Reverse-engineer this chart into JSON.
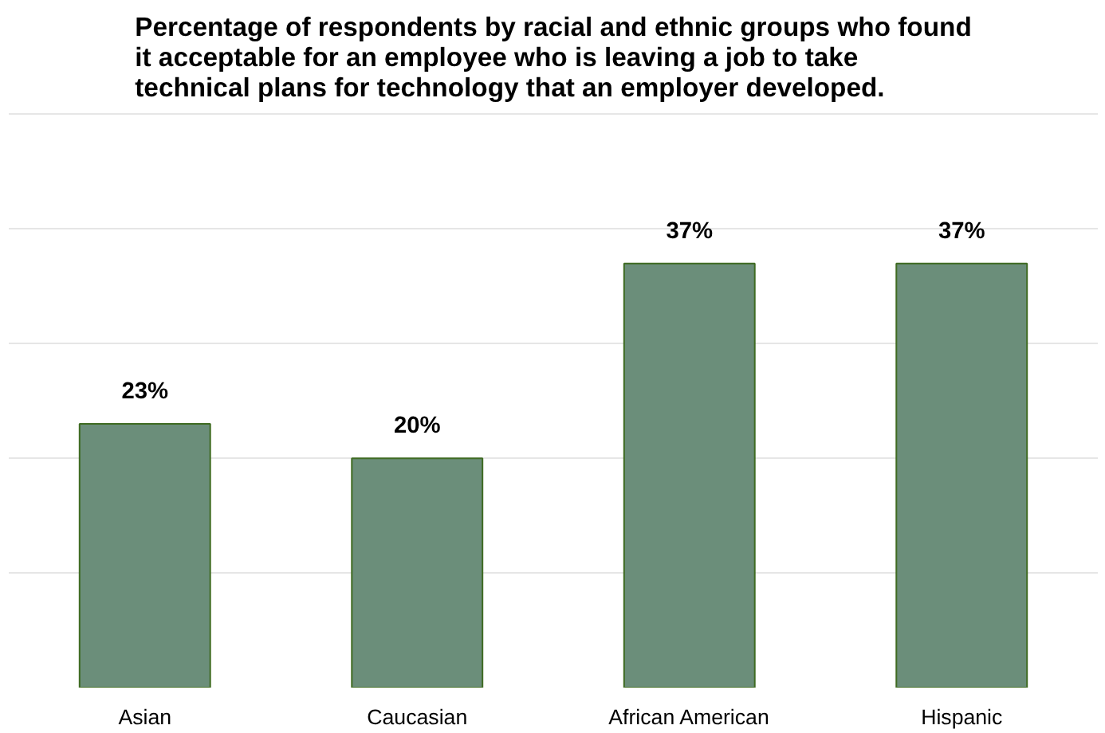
{
  "chart_data": {
    "type": "bar",
    "title": "Percentage of respondents by racial and ethnic groups who found it acceptable for an employee who is leaving a job to take technical plans for technology that an employer developed.",
    "categories": [
      "Asian",
      "Caucasian",
      "African American",
      "Hispanic"
    ],
    "values": [
      23,
      20,
      37,
      37
    ],
    "value_labels": [
      "23%",
      "20%",
      "37%",
      "37%"
    ],
    "color": "#6b8e7a",
    "grid": "y",
    "tick_labels": "x"
  }
}
